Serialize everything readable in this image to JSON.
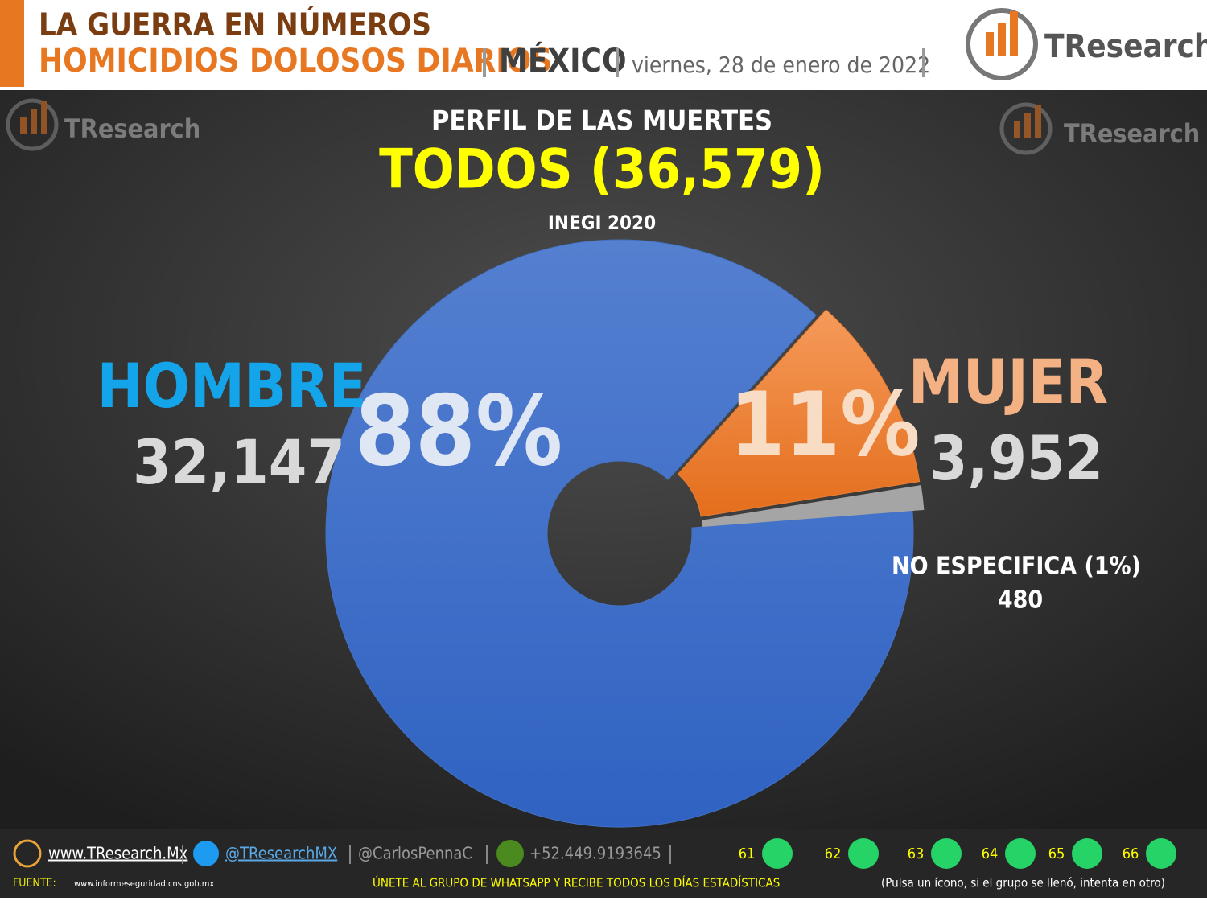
{
  "header": {
    "line1": "LA GUERRA EN NÚMEROS",
    "line2": "HOMICIDIOS DOLOSOS DIARIOS",
    "country": "MÉXICO",
    "date": "viernes, 28 de enero de 2022"
  },
  "logo": "TResearch",
  "chart_data": {
    "type": "pie",
    "title": "PERFIL DE LAS MUERTES",
    "subtitle": "TODOS (36,579)",
    "source": "INEGI 2020",
    "categories": [
      "HOMBRE",
      "MUJER",
      "NO ESPECIFICA (1%)"
    ],
    "values": [
      32147,
      3952,
      480
    ],
    "value_labels": [
      "32,147",
      "3,952",
      "480"
    ],
    "percent_labels": [
      "88%",
      "11%"
    ],
    "colors": [
      "#4472c4",
      "#ed7d31",
      "#a5a5a5"
    ]
  },
  "footer": {
    "website": "www.TResearch.Mx",
    "twitter": "@TResearchMX",
    "personal": "@CarlosPennaC",
    "phone": "+52.449.9193645",
    "groups": [
      "61",
      "62",
      "63",
      "64",
      "65",
      "66"
    ],
    "source_label": "FUENTE:",
    "source_url": "www.informeseguridad.cns.gob.mx",
    "cta": "ÚNETE AL GRUPO DE WHATSAPP Y RECIBE TODOS LOS DÍAS ESTADÍSTICAS",
    "cta_note": "(Pulsa un ícono, si el grupo se llenó, intenta en otro)"
  }
}
